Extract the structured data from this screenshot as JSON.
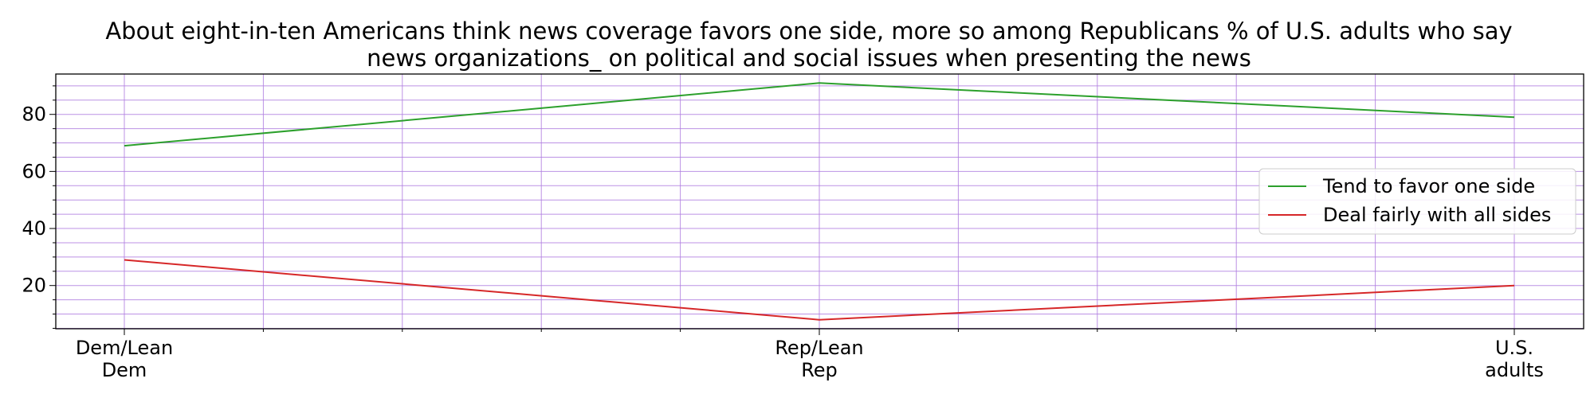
{
  "chart_data": {
    "type": "line",
    "title_lines": [
      "About eight-in-ten Americans think news coverage favors one side, more so among Republicans % of U.S. adults who say",
      "news organizations_ on political and social issues when presenting the news"
    ],
    "categories": [
      [
        "Dem/Lean",
        "Dem"
      ],
      [
        "Rep/Lean",
        "Rep"
      ],
      [
        "U.S.",
        "adults"
      ]
    ],
    "series": [
      {
        "name": "Tend to favor one side",
        "values": [
          69,
          91,
          79
        ],
        "color": "#2ca02c"
      },
      {
        "name": "Deal fairly with all sides",
        "values": [
          29,
          8,
          20
        ],
        "color": "#d62728"
      }
    ],
    "ylim": [
      4.85,
      94.15
    ],
    "yticks": [
      20,
      40,
      60,
      80
    ],
    "ytick_labels": [
      "20",
      "40",
      "60",
      "80"
    ],
    "grid": true,
    "grid_color": "#b07fe0",
    "legend_position": "center-right"
  }
}
